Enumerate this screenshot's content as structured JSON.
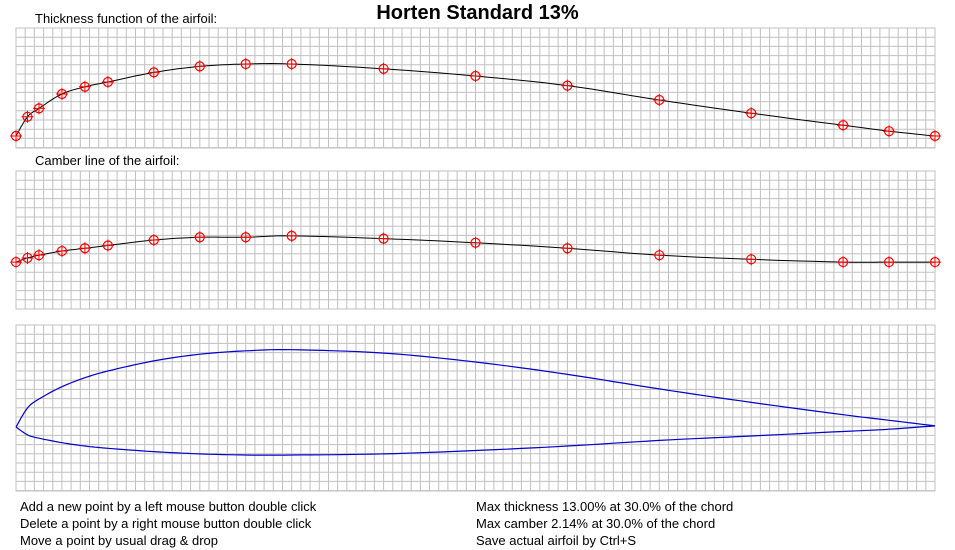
{
  "title": "Horten Standard 13%",
  "thickness_panel": {
    "label": "Thickness function of the airfoil:",
    "points": [
      [
        0.0,
        0.1
      ],
      [
        0.0125,
        0.26
      ],
      [
        0.025,
        0.33
      ],
      [
        0.05,
        0.45
      ],
      [
        0.075,
        0.51
      ],
      [
        0.1,
        0.55
      ],
      [
        0.15,
        0.63
      ],
      [
        0.2,
        0.68
      ],
      [
        0.25,
        0.7
      ],
      [
        0.3,
        0.7
      ],
      [
        0.4,
        0.66
      ],
      [
        0.5,
        0.6
      ],
      [
        0.6,
        0.52
      ],
      [
        0.7,
        0.4
      ],
      [
        0.8,
        0.29
      ],
      [
        0.9,
        0.19
      ],
      [
        0.95,
        0.14
      ],
      [
        1.0,
        0.1
      ]
    ]
  },
  "camber_panel": {
    "label": "Camber line of the airfoil:",
    "points": [
      [
        0.0,
        0.34
      ],
      [
        0.0125,
        0.37
      ],
      [
        0.025,
        0.39
      ],
      [
        0.05,
        0.42
      ],
      [
        0.075,
        0.44
      ],
      [
        0.1,
        0.46
      ],
      [
        0.15,
        0.5
      ],
      [
        0.2,
        0.52
      ],
      [
        0.25,
        0.52
      ],
      [
        0.3,
        0.53
      ],
      [
        0.4,
        0.51
      ],
      [
        0.5,
        0.48
      ],
      [
        0.6,
        0.44
      ],
      [
        0.7,
        0.39
      ],
      [
        0.8,
        0.36
      ],
      [
        0.9,
        0.34
      ],
      [
        0.95,
        0.34
      ],
      [
        1.0,
        0.34
      ]
    ]
  },
  "airfoil_panel": {
    "upper": [
      [
        0.0,
        0.0
      ],
      [
        0.0125,
        0.17
      ],
      [
        0.025,
        0.25
      ],
      [
        0.05,
        0.36
      ],
      [
        0.075,
        0.44
      ],
      [
        0.1,
        0.5
      ],
      [
        0.15,
        0.59
      ],
      [
        0.2,
        0.65
      ],
      [
        0.25,
        0.68
      ],
      [
        0.3,
        0.69
      ],
      [
        0.4,
        0.66
      ],
      [
        0.5,
        0.58
      ],
      [
        0.6,
        0.47
      ],
      [
        0.7,
        0.34
      ],
      [
        0.8,
        0.22
      ],
      [
        0.9,
        0.11
      ],
      [
        0.95,
        0.06
      ],
      [
        1.0,
        0.01
      ]
    ],
    "lower": [
      [
        0.0,
        0.0
      ],
      [
        0.0125,
        -0.07
      ],
      [
        0.025,
        -0.1
      ],
      [
        0.05,
        -0.14
      ],
      [
        0.075,
        -0.17
      ],
      [
        0.1,
        -0.19
      ],
      [
        0.15,
        -0.22
      ],
      [
        0.2,
        -0.24
      ],
      [
        0.25,
        -0.25
      ],
      [
        0.3,
        -0.25
      ],
      [
        0.4,
        -0.24
      ],
      [
        0.5,
        -0.21
      ],
      [
        0.6,
        -0.17
      ],
      [
        0.7,
        -0.12
      ],
      [
        0.8,
        -0.08
      ],
      [
        0.9,
        -0.04
      ],
      [
        0.95,
        -0.02
      ],
      [
        1.0,
        0.01
      ]
    ]
  },
  "hints": {
    "add": "Add a new point by a left mouse button double click",
    "delete": "Delete a point by a right mouse button double click",
    "move": "Move a point by usual drag & drop"
  },
  "info": {
    "max_thickness": "Max thickness 13.00% at 30.0% of the chord",
    "max_camber": "Max camber 2.14% at 30.0% of the chord",
    "save": "Save actual airfoil by Ctrl+S"
  },
  "colors": {
    "grid": "#c0c0c0",
    "curve": "#000000",
    "control_point": "#ff0000",
    "airfoil": "#0000cc"
  }
}
